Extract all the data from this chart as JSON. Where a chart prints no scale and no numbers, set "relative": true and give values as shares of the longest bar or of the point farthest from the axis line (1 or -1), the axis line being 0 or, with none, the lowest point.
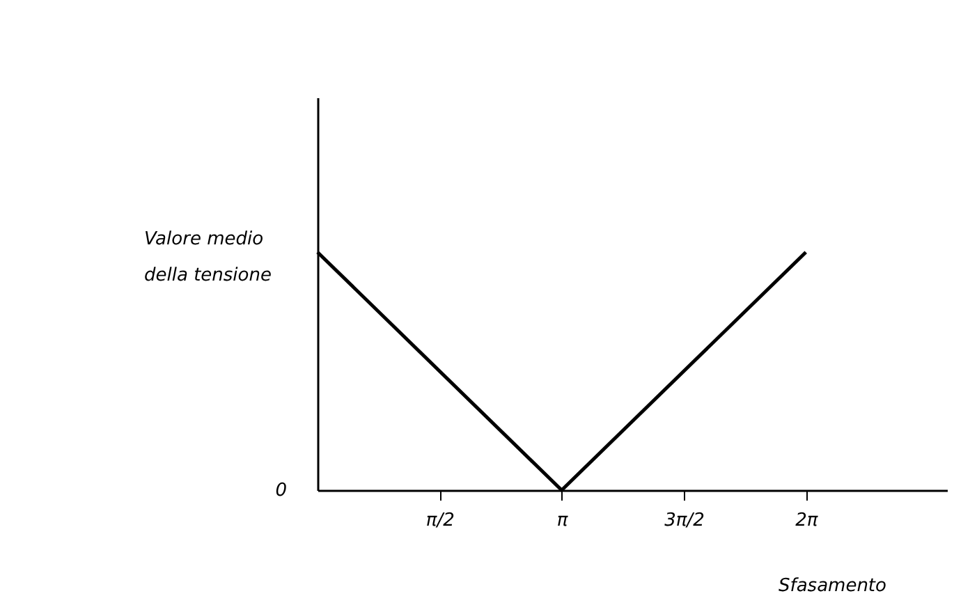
{
  "chart_data": {
    "type": "line",
    "relative": true,
    "xlabel": "Sfasamento",
    "ylabel": "Valore medio della tensione",
    "x": [
      0,
      3.1416,
      6.2832
    ],
    "series": [
      {
        "color": "#000000",
        "values": [
          1,
          0,
          1
        ]
      }
    ],
    "xlim": [
      0,
      8.1
    ],
    "xticks": [
      {
        "value": 1.5708,
        "label": "π/2"
      },
      {
        "value": 3.1416,
        "label": "π"
      },
      {
        "value": 4.7124,
        "label": "3π/2"
      },
      {
        "value": 6.2832,
        "label": "2π"
      }
    ],
    "annotations": [
      "0"
    ],
    "grid": false,
    "legend": false,
    "marker": "none",
    "line_style": "solid"
  }
}
